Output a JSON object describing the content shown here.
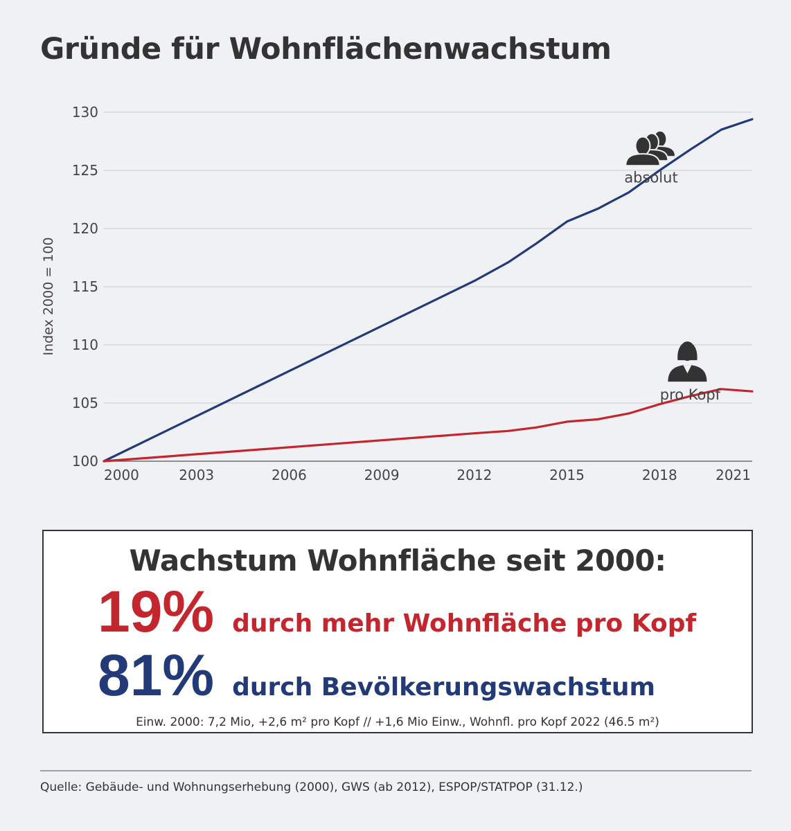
{
  "page": {
    "title": "Gründe für Wohnflächenwachstum"
  },
  "chart_data": {
    "type": "line",
    "ylabel": "Index 2000 = 100",
    "xlabel": "",
    "ylim": [
      100,
      130
    ],
    "xlim": [
      2000,
      2021
    ],
    "yticks": [
      100,
      105,
      110,
      115,
      120,
      125,
      130
    ],
    "xticks": [
      "2000",
      "2003",
      "2006",
      "2009",
      "2012",
      "2015",
      "2018",
      "2021"
    ],
    "grid": true,
    "series": [
      {
        "name": "absolut",
        "color": "#233a78",
        "x": [
          2000,
          2012,
          2013.1,
          2014,
          2015,
          2016,
          2017,
          2018,
          2019,
          2020,
          2021
        ],
        "y": [
          100,
          115.5,
          117.1,
          118.7,
          120.6,
          121.7,
          123.1,
          125.0,
          126.8,
          128.5,
          129.4
        ]
      },
      {
        "name": "pro Kopf",
        "color": "#c4262e",
        "x": [
          2000,
          2012,
          2013.1,
          2014,
          2015,
          2016,
          2017,
          2018,
          2019,
          2020,
          2021
        ],
        "y": [
          100,
          102.4,
          102.6,
          102.9,
          103.4,
          103.6,
          104.1,
          104.9,
          105.6,
          106.2,
          106.0
        ]
      }
    ],
    "annotations": [
      {
        "label": "absolut",
        "icon": "group-people-icon",
        "x": 2017.5,
        "y": 125.4
      },
      {
        "label": "pro Kopf",
        "icon": "person-icon",
        "x": 2018.9,
        "y": 106.6
      }
    ]
  },
  "summary": {
    "title": "Wachstum Wohnfläche seit 2000:",
    "items": [
      {
        "pct": "19%",
        "text": "durch mehr Wohnfläche pro Kopf",
        "color": "#c4262e"
      },
      {
        "pct": "81%",
        "text": "durch Bevölkerungswachstum",
        "color": "#233a78"
      }
    ],
    "footnote": "Einw. 2000: 7,2 Mio, +2,6 m² pro Kopf // +1,6 Mio Einw., Wohnfl. pro Kopf 2022 (46.5 m²)"
  },
  "source": "Quelle: Gebäude- und Wohnungserhebung (2000), GWS (ab 2012), ESPOP/STATPOP (31.12.)"
}
